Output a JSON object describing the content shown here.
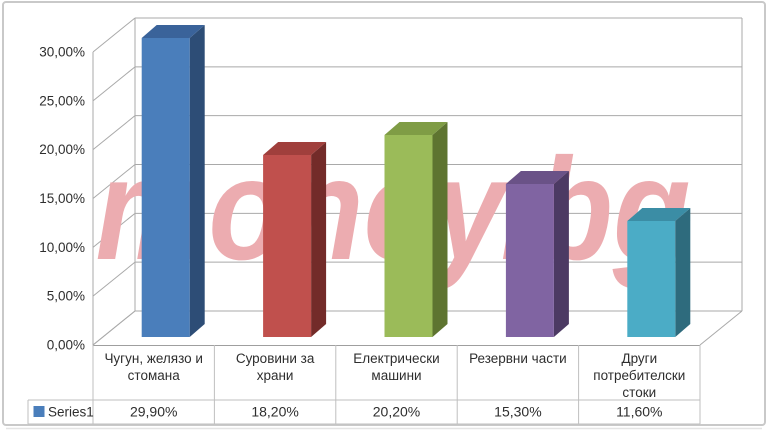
{
  "chart_data": {
    "type": "bar",
    "variant": "3d-column",
    "title": "",
    "categories": [
      "Чугун, желязо и стомана",
      "Суровини за храни",
      "Електрически машини",
      "Резервни части",
      "Други потребителски стоки"
    ],
    "series": [
      {
        "name": "Series1",
        "values": [
          29.9,
          18.2,
          20.2,
          15.3,
          11.6
        ]
      }
    ],
    "value_labels": [
      "29,90%",
      "18,20%",
      "20,20%",
      "15,30%",
      "11,60%"
    ],
    "y_ticks": [
      "0,00%",
      "5,00%",
      "10,00%",
      "15,00%",
      "20,00%",
      "25,00%",
      "30,00%"
    ],
    "ylim": [
      0,
      30
    ],
    "y_step": 5,
    "grid": true,
    "legend_position": "data-table-bottom-left",
    "legend_label": "Series1",
    "watermark": "money.bg",
    "colors": {
      "watermark": "#ecacb0",
      "grid": "#a9a9a9",
      "table_border": "#bfbfbf",
      "axis_text": "#2e2e2e",
      "frame": "#c9c9c9",
      "legend_key": "#4a7ebb",
      "bars": [
        {
          "front": "#4a7ebb",
          "top": "#3a639a",
          "side": "#2d4d76"
        },
        {
          "front": "#c0504d",
          "top": "#a03f3c",
          "side": "#732b29"
        },
        {
          "front": "#9bbb59",
          "top": "#7f9c45",
          "side": "#5e7430"
        },
        {
          "front": "#8064a2",
          "top": "#6a5287",
          "side": "#4c3a63"
        },
        {
          "front": "#4bacc6",
          "top": "#3b8da5",
          "side": "#2e6b7d"
        }
      ]
    }
  }
}
